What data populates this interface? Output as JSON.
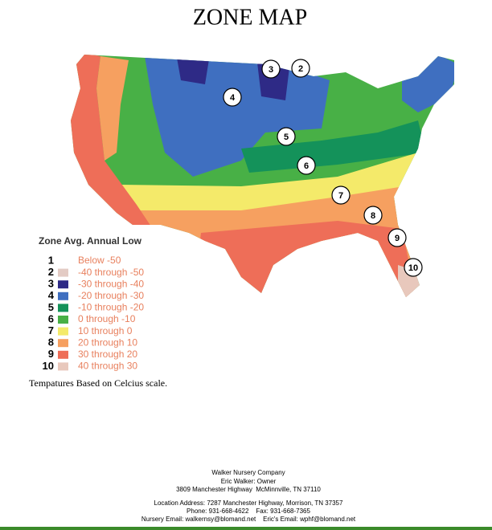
{
  "title": "ZONE MAP",
  "map": {
    "markers": [
      "3",
      "2",
      "4",
      "5",
      "6",
      "7",
      "8",
      "9",
      "10"
    ]
  },
  "legend": {
    "title": "Zone Avg. Annual Low",
    "items": [
      {
        "zone": "1",
        "label": "Below -50"
      },
      {
        "zone": "2",
        "label": "-40 through -50",
        "color": "#e3cbc4"
      },
      {
        "zone": "3",
        "label": "-30 through -40",
        "color": "#2e2a86"
      },
      {
        "zone": "4",
        "label": "-20 through -30",
        "color": "#3f6fc0"
      },
      {
        "zone": "5",
        "label": "-10 through -20",
        "color": "#14925a"
      },
      {
        "zone": "6",
        "label": "0 through -10",
        "color": "#48b046"
      },
      {
        "zone": "7",
        "label": "10 through 0",
        "color": "#f4ea6a"
      },
      {
        "zone": "8",
        "label": "20 through 10",
        "color": "#f6a060"
      },
      {
        "zone": "9",
        "label": "30 through 20",
        "color": "#ee6e58"
      },
      {
        "zone": "10",
        "label": "40 through 30",
        "color": "#e8c8bc"
      }
    ]
  },
  "note": "Tempatures Based on Celcius scale.",
  "footer": {
    "lines": [
      "Walker Nursery Company",
      "Eric Walker: Owner",
      "3809 Manchester Highway  McMinnville, TN 37110",
      "Location Address: 7287 Manchester Highway, Morrison, TN 37357",
      "Phone: 931-668-4622    Fax: 931-668-7365",
      "Nursery Email: walkernsy@blomand.net    Eric's Email: wphf@blomand.net"
    ]
  }
}
